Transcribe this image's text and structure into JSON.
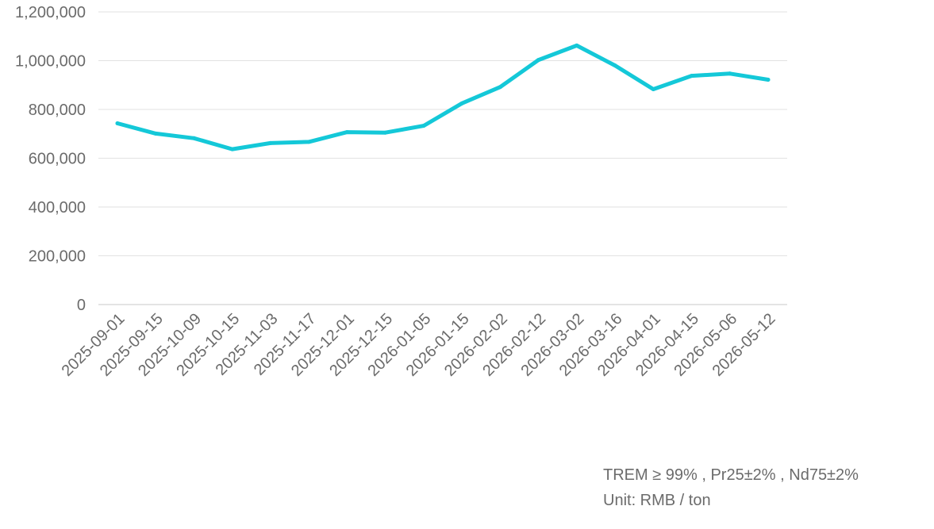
{
  "chart_data": {
    "type": "line",
    "title": "",
    "xlabel": "",
    "ylabel": "",
    "ylim": [
      0,
      1200000
    ],
    "yticks": [
      "0",
      "200,000",
      "400,000",
      "600,000",
      "800,000",
      "1,000,000",
      "1,200,000"
    ],
    "grid": true,
    "line_color": "#14c8d8",
    "x": [
      "2025-09-01",
      "2025-09-15",
      "2025-10-09",
      "2025-10-15",
      "2025-11-03",
      "2025-11-17",
      "2025-12-01",
      "2025-12-15",
      "2026-01-05",
      "2026-01-15",
      "2026-02-02",
      "2026-02-12",
      "2026-03-02",
      "2026-03-16",
      "2026-04-01",
      "2026-04-15",
      "2026-05-06",
      "2026-05-12"
    ],
    "series": [
      {
        "values": [
          743000,
          701000,
          682000,
          637000,
          662000,
          667000,
          707000,
          705000,
          733000,
          825000,
          892000,
          1003000,
          1062000,
          980000,
          883000,
          938000,
          947000,
          922000
        ]
      }
    ]
  },
  "notes": {
    "spec": "TREM ≥ 99% , Pr25±2% , Nd75±2%",
    "unit": "Unit: RMB / ton"
  }
}
